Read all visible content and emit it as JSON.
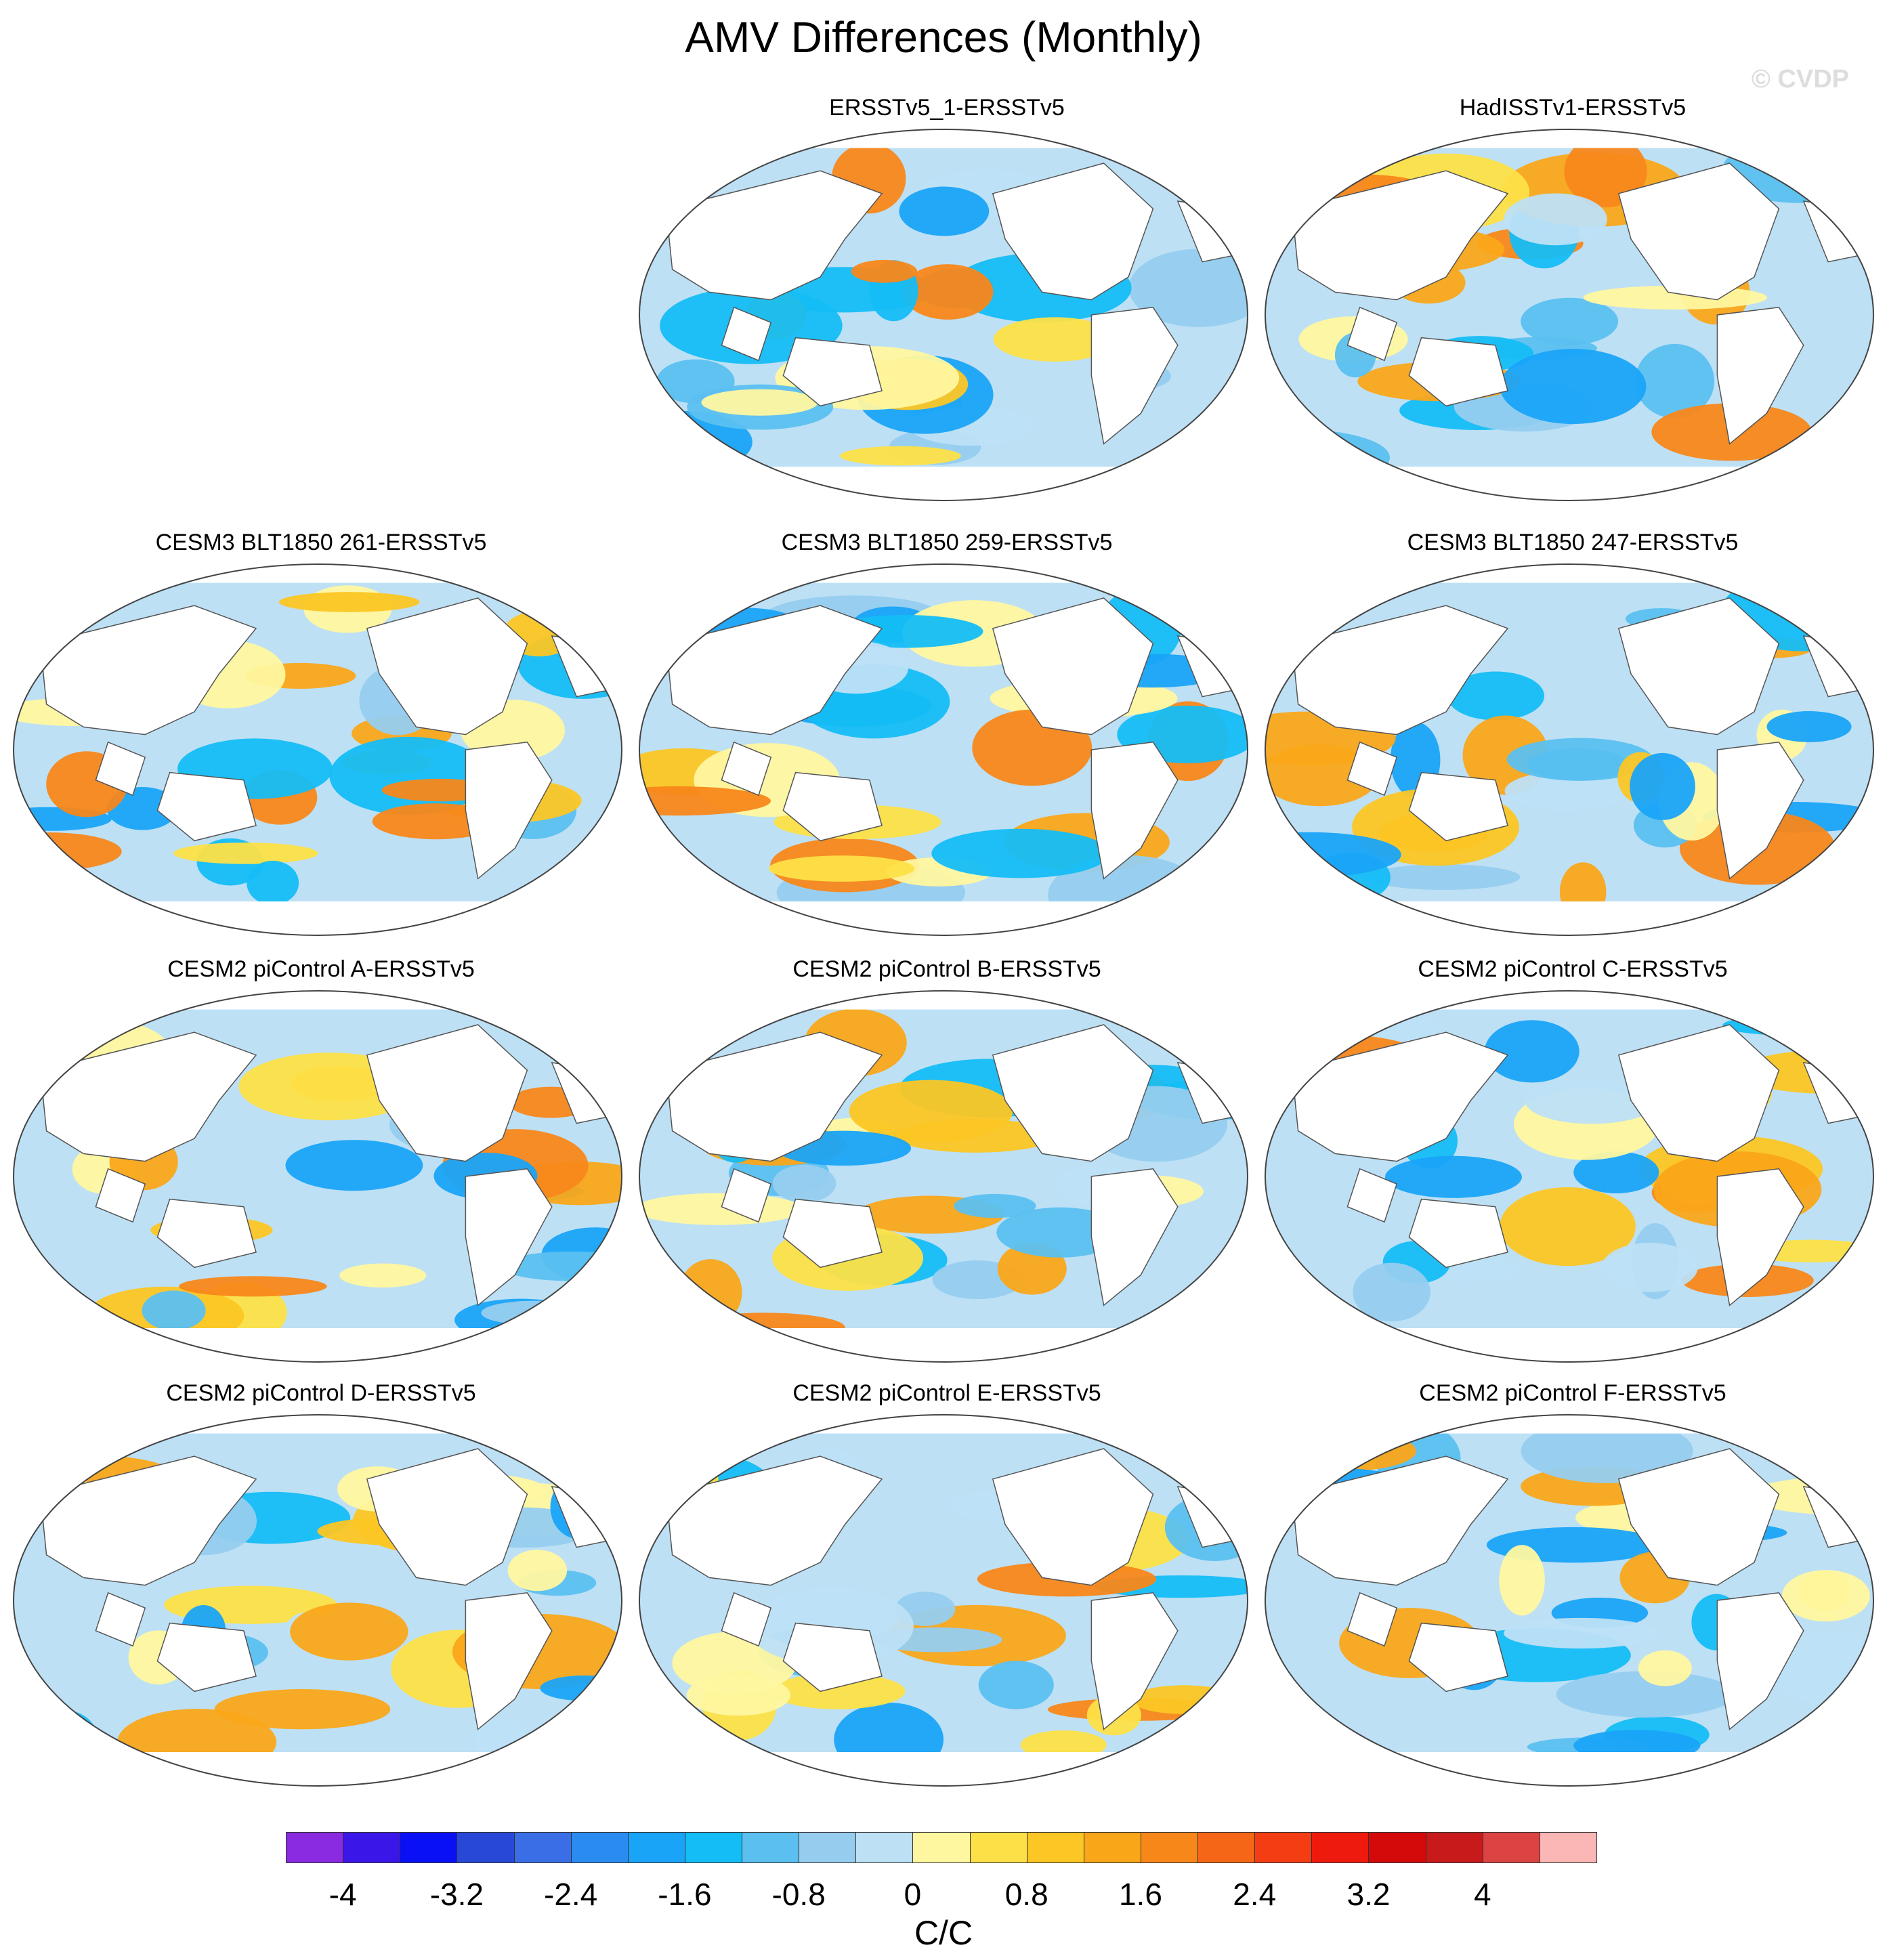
{
  "title": "AMV Differences (Monthly)",
  "watermark": "© CVDP",
  "chart_data": {
    "type": "heatmap",
    "title": "AMV Differences (Monthly)",
    "projection": "Robinson (global, Pacific-centered)",
    "panels": [
      {
        "label": "ERSSTv5_1-ERSSTv5",
        "row": 0,
        "col": 1
      },
      {
        "label": "HadISSTv1-ERSSTv5",
        "row": 0,
        "col": 2
      },
      {
        "label": "CESM3 BLT1850 261-ERSSTv5",
        "row": 1,
        "col": 0
      },
      {
        "label": "CESM3 BLT1850 259-ERSSTv5",
        "row": 1,
        "col": 1
      },
      {
        "label": "CESM3 BLT1850 247-ERSSTv5",
        "row": 1,
        "col": 2
      },
      {
        "label": "CESM2 piControl A-ERSSTv5",
        "row": 2,
        "col": 0
      },
      {
        "label": "CESM2 piControl B-ERSSTv5",
        "row": 2,
        "col": 1
      },
      {
        "label": "CESM2 piControl C-ERSSTv5",
        "row": 2,
        "col": 2
      },
      {
        "label": "CESM2 piControl D-ERSSTv5",
        "row": 3,
        "col": 0
      },
      {
        "label": "CESM2 piControl E-ERSSTv5",
        "row": 3,
        "col": 1
      },
      {
        "label": "CESM2 piControl F-ERSSTv5",
        "row": 3,
        "col": 2
      }
    ],
    "colorbar": {
      "levels": [
        -4.4,
        -4,
        -3.6,
        -3.2,
        -2.8,
        -2.4,
        -2,
        -1.6,
        -1.2,
        -0.8,
        -0.4,
        0,
        0.4,
        0.8,
        1.2,
        1.6,
        2,
        2.4,
        2.8,
        3.2,
        3.6,
        4,
        4.4
      ],
      "tick_labels": [
        "-4",
        "-3.2",
        "-2.4",
        "-1.6",
        "-0.8",
        "0",
        "0.8",
        "1.6",
        "2.4",
        "3.2",
        "4"
      ],
      "tick_values": [
        -4,
        -3.2,
        -2.4,
        -1.6,
        -0.8,
        0,
        0.8,
        1.6,
        2.4,
        3.2,
        4
      ],
      "colors": [
        "#8a2be2",
        "#3a16e8",
        "#0a10f5",
        "#2848d8",
        "#3a6ee6",
        "#2a8cf0",
        "#1aa4f8",
        "#14bdf5",
        "#5bc0f0",
        "#96cdef",
        "#bde0f5",
        "#fff7a0",
        "#fde047",
        "#fcc624",
        "#faa619",
        "#f8871a",
        "#f56616",
        "#f43d12",
        "#ee1a0e",
        "#d40a0a",
        "#c81a1a",
        "#dc4444",
        "#fbb6b6"
      ],
      "unit_label": "C/C"
    }
  }
}
